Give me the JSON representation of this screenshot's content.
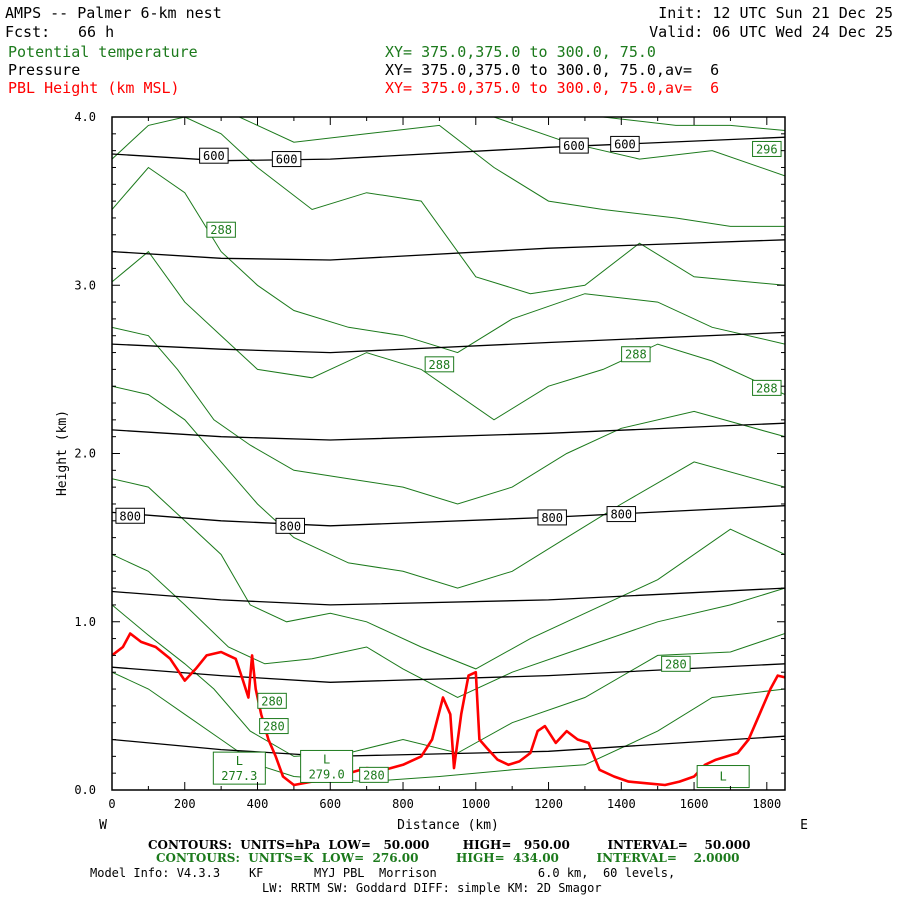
{
  "header": {
    "title": "AMPS -- Palmer 6-km nest",
    "fcst_label": "Fcst:",
    "fcst_value": "66 h",
    "init": "Init: 12 UTC Sun 21 Dec 25",
    "valid": "Valid: 06 UTC Wed 24 Dec 25",
    "fields": [
      {
        "name": "Potential temperature",
        "xy": "XY= 375.0,375.0 to 300.0, 75.0",
        "color": "#1c7a1c"
      },
      {
        "name": "Pressure",
        "xy": "XY= 375.0,375.0 to 300.0, 75.0,av=  6",
        "color": "#000000"
      },
      {
        "name": "PBL Height (km MSL)",
        "xy": "XY= 375.0,375.0 to 300.0, 75.0,av=  6",
        "color": "#ff0000"
      }
    ]
  },
  "footer": {
    "pressure_contours": "CONTOURS:  UNITS=hPa  LOW=   50.000        HIGH=   950.00         INTERVAL=    50.000",
    "theta_contours": "CONTOURS:  UNITS=K  LOW=  276.00         HIGH=  434.00         INTERVAL=    2.0000",
    "model_info": "Model Info: V4.3.3    KF       MYJ PBL  Morrison              6.0 km,  60 levels,",
    "physics": "LW: RRTM SW: Goddard DIFF: simple KM: 2D Smagor"
  },
  "chart_data": {
    "type": "line",
    "xlabel": "Distance (km)",
    "ylabel": "Height (km)",
    "xlim": [
      0,
      1850
    ],
    "ylim": [
      0,
      4.0
    ],
    "x_ticks": [
      0,
      200,
      400,
      600,
      800,
      1000,
      1200,
      1400,
      1600,
      1800
    ],
    "x_tick_labels": [
      "0",
      "200",
      "400",
      "600",
      "800",
      "1000",
      "1200",
      "1400",
      "1600",
      "1800"
    ],
    "y_ticks": [
      0,
      1,
      2,
      3,
      4
    ],
    "y_tick_labels": [
      "0.0",
      "1.0",
      "2.0",
      "3.0",
      "4.0"
    ],
    "left_end_label": "W",
    "right_end_label": "E",
    "colors": {
      "theta": "#1c7a1c",
      "pressure": "#000000",
      "pbl": "#ff0000"
    },
    "pressure_isobars": [
      {
        "points": [
          [
            0,
            3.78
          ],
          [
            300,
            3.74
          ],
          [
            600,
            3.75
          ],
          [
            1200,
            3.82
          ],
          [
            1850,
            3.88
          ]
        ],
        "labels": [
          {
            "text": "600",
            "x": 280,
            "y": 3.77
          },
          {
            "text": "600",
            "x": 480,
            "y": 3.75
          },
          {
            "text": "600",
            "x": 1270,
            "y": 3.83
          },
          {
            "text": "600",
            "x": 1410,
            "y": 3.84
          }
        ]
      },
      {
        "points": [
          [
            0,
            3.2
          ],
          [
            300,
            3.16
          ],
          [
            600,
            3.15
          ],
          [
            1200,
            3.22
          ],
          [
            1850,
            3.27
          ]
        ],
        "labels": []
      },
      {
        "points": [
          [
            0,
            2.65
          ],
          [
            300,
            2.62
          ],
          [
            600,
            2.6
          ],
          [
            1200,
            2.66
          ],
          [
            1850,
            2.72
          ]
        ],
        "labels": []
      },
      {
        "points": [
          [
            0,
            2.14
          ],
          [
            300,
            2.1
          ],
          [
            600,
            2.08
          ],
          [
            1200,
            2.12
          ],
          [
            1850,
            2.18
          ]
        ],
        "labels": []
      },
      {
        "points": [
          [
            0,
            1.65
          ],
          [
            300,
            1.6
          ],
          [
            600,
            1.57
          ],
          [
            1200,
            1.62
          ],
          [
            1850,
            1.69
          ]
        ],
        "labels": [
          {
            "text": "800",
            "x": 50,
            "y": 1.63
          },
          {
            "text": "800",
            "x": 490,
            "y": 1.57
          },
          {
            "text": "800",
            "x": 1210,
            "y": 1.62
          },
          {
            "text": "800",
            "x": 1400,
            "y": 1.64
          }
        ]
      },
      {
        "points": [
          [
            0,
            1.18
          ],
          [
            300,
            1.13
          ],
          [
            600,
            1.1
          ],
          [
            1200,
            1.13
          ],
          [
            1850,
            1.2
          ]
        ],
        "labels": []
      },
      {
        "points": [
          [
            0,
            0.73
          ],
          [
            300,
            0.68
          ],
          [
            600,
            0.64
          ],
          [
            1200,
            0.68
          ],
          [
            1850,
            0.75
          ]
        ],
        "labels": []
      },
      {
        "points": [
          [
            0,
            0.3
          ],
          [
            300,
            0.24
          ],
          [
            600,
            0.2
          ],
          [
            1200,
            0.23
          ],
          [
            1850,
            0.32
          ]
        ],
        "labels": []
      }
    ],
    "theta_contours": [
      {
        "points": [
          [
            0,
            0.7
          ],
          [
            100,
            0.6
          ],
          [
            200,
            0.45
          ],
          [
            300,
            0.3
          ],
          [
            400,
            0.15
          ],
          [
            500,
            0.08
          ],
          [
            700,
            0.05
          ],
          [
            900,
            0.08
          ],
          [
            1100,
            0.12
          ],
          [
            1300,
            0.15
          ],
          [
            1500,
            0.35
          ],
          [
            1650,
            0.55
          ],
          [
            1850,
            0.6
          ]
        ]
      },
      {
        "points": [
          [
            0,
            1.1
          ],
          [
            100,
            0.92
          ],
          [
            200,
            0.75
          ],
          [
            280,
            0.6
          ],
          [
            380,
            0.35
          ],
          [
            500,
            0.2
          ],
          [
            650,
            0.22
          ],
          [
            800,
            0.3
          ],
          [
            950,
            0.22
          ],
          [
            1100,
            0.4
          ],
          [
            1300,
            0.55
          ],
          [
            1500,
            0.8
          ],
          [
            1700,
            0.82
          ],
          [
            1850,
            0.93
          ]
        ]
      },
      {
        "points": [
          [
            0,
            1.4
          ],
          [
            100,
            1.3
          ],
          [
            200,
            1.1
          ],
          [
            320,
            0.85
          ],
          [
            420,
            0.75
          ],
          [
            550,
            0.78
          ],
          [
            700,
            0.85
          ],
          [
            800,
            0.72
          ],
          [
            950,
            0.55
          ],
          [
            1100,
            0.7
          ],
          [
            1300,
            0.85
          ],
          [
            1500,
            1.0
          ],
          [
            1700,
            1.1
          ],
          [
            1850,
            1.2
          ]
        ]
      },
      {
        "points": [
          [
            0,
            1.85
          ],
          [
            100,
            1.8
          ],
          [
            200,
            1.6
          ],
          [
            300,
            1.4
          ],
          [
            380,
            1.1
          ],
          [
            480,
            1.0
          ],
          [
            600,
            1.05
          ],
          [
            700,
            1.0
          ],
          [
            850,
            0.85
          ],
          [
            1000,
            0.72
          ],
          [
            1150,
            0.9
          ],
          [
            1300,
            1.05
          ],
          [
            1500,
            1.25
          ],
          [
            1700,
            1.55
          ],
          [
            1850,
            1.4
          ]
        ]
      },
      {
        "points": [
          [
            0,
            2.4
          ],
          [
            100,
            2.35
          ],
          [
            200,
            2.2
          ],
          [
            300,
            1.95
          ],
          [
            400,
            1.7
          ],
          [
            500,
            1.5
          ],
          [
            650,
            1.35
          ],
          [
            800,
            1.3
          ],
          [
            950,
            1.2
          ],
          [
            1100,
            1.3
          ],
          [
            1250,
            1.5
          ],
          [
            1400,
            1.7
          ],
          [
            1600,
            1.95
          ],
          [
            1850,
            1.8
          ]
        ]
      },
      {
        "points": [
          [
            0,
            2.75
          ],
          [
            100,
            2.7
          ],
          [
            180,
            2.5
          ],
          [
            280,
            2.2
          ],
          [
            380,
            2.05
          ],
          [
            500,
            1.9
          ],
          [
            650,
            1.85
          ],
          [
            800,
            1.8
          ],
          [
            950,
            1.7
          ],
          [
            1100,
            1.8
          ],
          [
            1250,
            2.0
          ],
          [
            1400,
            2.15
          ],
          [
            1600,
            2.25
          ],
          [
            1850,
            2.1
          ]
        ]
      },
      {
        "points": [
          [
            0,
            3.02
          ],
          [
            100,
            3.2
          ],
          [
            200,
            2.9
          ],
          [
            300,
            2.7
          ],
          [
            400,
            2.5
          ],
          [
            550,
            2.45
          ],
          [
            700,
            2.6
          ],
          [
            850,
            2.5
          ],
          [
            1050,
            2.2
          ],
          [
            1200,
            2.4
          ],
          [
            1350,
            2.5
          ],
          [
            1500,
            2.65
          ],
          [
            1650,
            2.55
          ],
          [
            1850,
            2.35
          ]
        ],
        "labels": [
          {
            "text": "288",
            "x": 900,
            "y": 2.53
          },
          {
            "text": "288",
            "x": 1440,
            "y": 2.59
          },
          {
            "text": "288",
            "x": 1800,
            "y": 2.39
          }
        ]
      },
      {
        "points": [
          [
            0,
            3.45
          ],
          [
            100,
            3.7
          ],
          [
            200,
            3.55
          ],
          [
            300,
            3.2
          ],
          [
            400,
            3.0
          ],
          [
            500,
            2.85
          ],
          [
            650,
            2.75
          ],
          [
            800,
            2.7
          ],
          [
            950,
            2.6
          ],
          [
            1100,
            2.8
          ],
          [
            1300,
            2.95
          ],
          [
            1500,
            2.9
          ],
          [
            1650,
            2.75
          ],
          [
            1850,
            2.65
          ]
        ],
        "labels": [
          {
            "text": "288",
            "x": 300,
            "y": 3.33
          }
        ]
      },
      {
        "points": [
          [
            0,
            3.75
          ],
          [
            100,
            3.95
          ],
          [
            200,
            4.0
          ],
          [
            300,
            3.9
          ],
          [
            400,
            3.7
          ],
          [
            550,
            3.45
          ],
          [
            700,
            3.55
          ],
          [
            850,
            3.5
          ],
          [
            1000,
            3.05
          ],
          [
            1150,
            2.95
          ],
          [
            1300,
            3.0
          ],
          [
            1450,
            3.25
          ],
          [
            1600,
            3.05
          ],
          [
            1850,
            3.0
          ]
        ]
      },
      {
        "points": [
          [
            350,
            4.0
          ],
          [
            500,
            3.85
          ],
          [
            700,
            3.9
          ],
          [
            900,
            3.95
          ],
          [
            1050,
            3.7
          ],
          [
            1200,
            3.5
          ],
          [
            1350,
            3.45
          ],
          [
            1550,
            3.4
          ],
          [
            1700,
            3.35
          ],
          [
            1850,
            3.35
          ]
        ]
      },
      {
        "points": [
          [
            1050,
            4.0
          ],
          [
            1250,
            3.85
          ],
          [
            1450,
            3.75
          ],
          [
            1650,
            3.8
          ],
          [
            1850,
            3.65
          ]
        ],
        "labels": [
          {
            "text": "296",
            "x": 1800,
            "y": 3.81
          }
        ]
      },
      {
        "points": [
          [
            1350,
            4.0
          ],
          [
            1550,
            3.95
          ],
          [
            1700,
            3.95
          ],
          [
            1850,
            3.92
          ]
        ]
      }
    ],
    "theta_box_labels": [
      {
        "text": "280",
        "x": 440,
        "y": 0.53
      },
      {
        "text": "280",
        "x": 445,
        "y": 0.38
      },
      {
        "text": "280",
        "x": 720,
        "y": 0.09
      },
      {
        "text": "280",
        "x": 1550,
        "y": 0.75
      }
    ],
    "low_markers": [
      {
        "text": "L",
        "value": "277.3",
        "x": 350,
        "y": 0.13
      },
      {
        "text": "L",
        "value": "279.0",
        "x": 590,
        "y": 0.14
      },
      {
        "text": "L",
        "value": "",
        "x": 1680,
        "y": 0.08
      }
    ],
    "series": [
      {
        "name": "PBL Height (km MSL)",
        "points": [
          [
            0,
            0.8
          ],
          [
            30,
            0.85
          ],
          [
            50,
            0.93
          ],
          [
            80,
            0.88
          ],
          [
            120,
            0.85
          ],
          [
            160,
            0.78
          ],
          [
            200,
            0.65
          ],
          [
            230,
            0.72
          ],
          [
            260,
            0.8
          ],
          [
            300,
            0.82
          ],
          [
            320,
            0.8
          ],
          [
            340,
            0.78
          ],
          [
            360,
            0.65
          ],
          [
            375,
            0.55
          ],
          [
            385,
            0.8
          ],
          [
            395,
            0.6
          ],
          [
            410,
            0.45
          ],
          [
            430,
            0.3
          ],
          [
            450,
            0.2
          ],
          [
            470,
            0.08
          ],
          [
            500,
            0.03
          ],
          [
            550,
            0.05
          ],
          [
            600,
            0.06
          ],
          [
            650,
            0.1
          ],
          [
            700,
            0.13
          ],
          [
            750,
            0.12
          ],
          [
            800,
            0.15
          ],
          [
            850,
            0.2
          ],
          [
            880,
            0.3
          ],
          [
            910,
            0.55
          ],
          [
            930,
            0.45
          ],
          [
            940,
            0.13
          ],
          [
            960,
            0.45
          ],
          [
            980,
            0.68
          ],
          [
            1000,
            0.7
          ],
          [
            1010,
            0.3
          ],
          [
            1030,
            0.25
          ],
          [
            1060,
            0.18
          ],
          [
            1090,
            0.15
          ],
          [
            1120,
            0.17
          ],
          [
            1150,
            0.22
          ],
          [
            1170,
            0.35
          ],
          [
            1190,
            0.38
          ],
          [
            1220,
            0.28
          ],
          [
            1250,
            0.35
          ],
          [
            1280,
            0.3
          ],
          [
            1310,
            0.28
          ],
          [
            1340,
            0.12
          ],
          [
            1380,
            0.08
          ],
          [
            1420,
            0.05
          ],
          [
            1470,
            0.04
          ],
          [
            1520,
            0.03
          ],
          [
            1560,
            0.05
          ],
          [
            1600,
            0.08
          ],
          [
            1630,
            0.15
          ],
          [
            1660,
            0.18
          ],
          [
            1690,
            0.2
          ],
          [
            1720,
            0.22
          ],
          [
            1750,
            0.3
          ],
          [
            1780,
            0.45
          ],
          [
            1810,
            0.6
          ],
          [
            1830,
            0.68
          ],
          [
            1850,
            0.67
          ]
        ]
      }
    ]
  }
}
